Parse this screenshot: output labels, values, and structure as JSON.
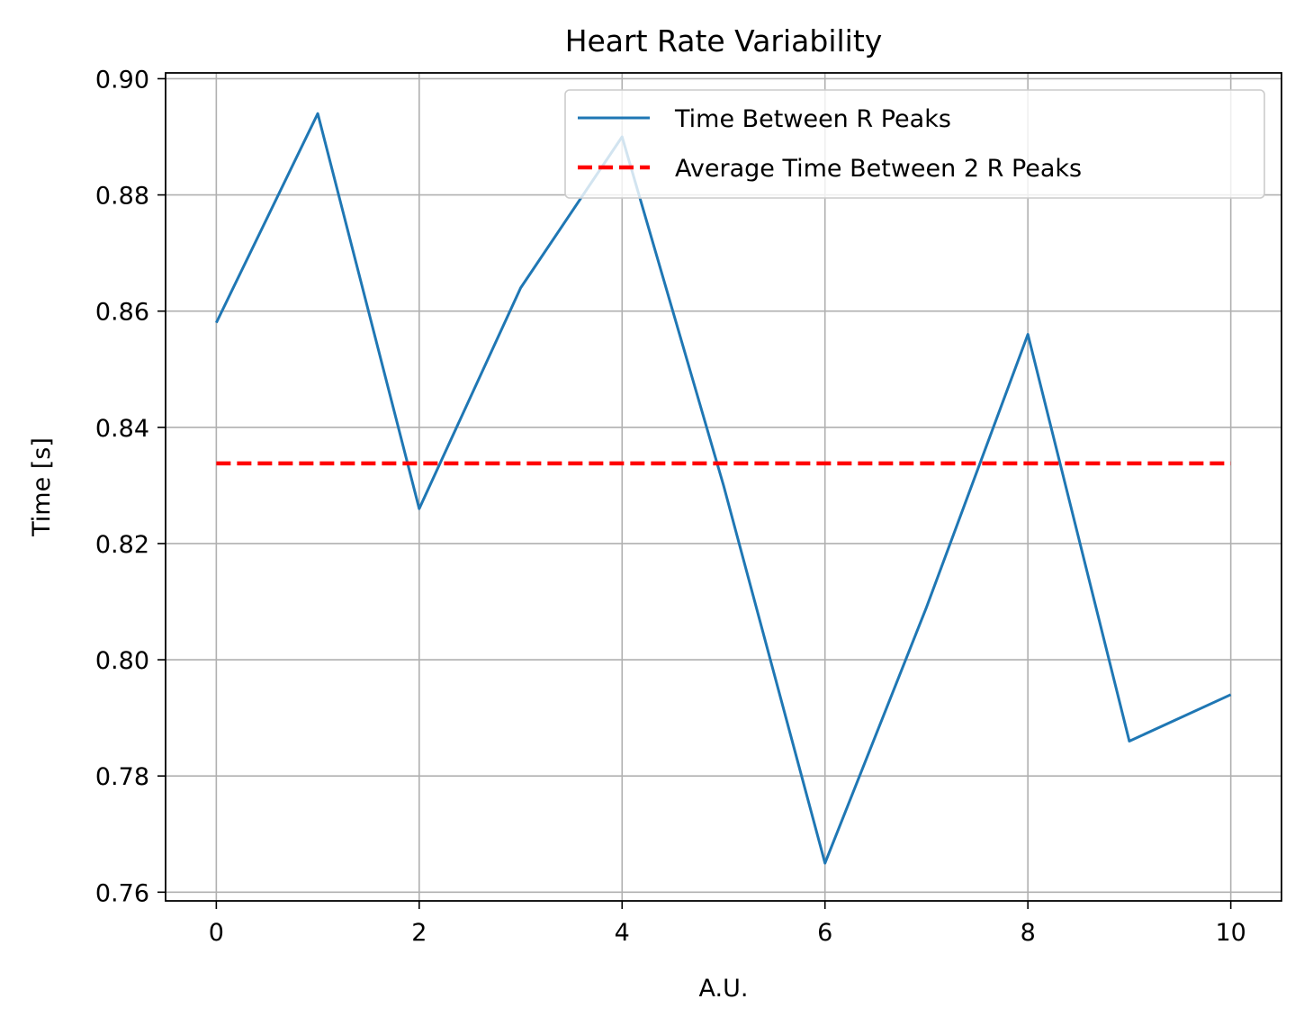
{
  "chart_data": {
    "type": "line",
    "title": "Heart Rate Variability",
    "xlabel": "A.U.",
    "ylabel": "Time [s]",
    "xlim": [
      -0.5,
      10.5
    ],
    "ylim": [
      0.7585,
      0.901
    ],
    "xticks": [
      0,
      2,
      4,
      6,
      8,
      10
    ],
    "yticks": [
      0.76,
      0.78,
      0.8,
      0.82,
      0.84,
      0.86,
      0.88,
      0.9
    ],
    "xtick_labels": [
      "0",
      "2",
      "4",
      "6",
      "8",
      "10"
    ],
    "ytick_labels": [
      "0.76",
      "0.78",
      "0.80",
      "0.82",
      "0.84",
      "0.86",
      "0.88",
      "0.90"
    ],
    "grid": true,
    "legend_position": "upper right",
    "series": [
      {
        "name": "Time Between R Peaks",
        "style": "solid",
        "color": "#1f77b4",
        "x": [
          0,
          1,
          2,
          3,
          4,
          5,
          6,
          7,
          8,
          9,
          10
        ],
        "values": [
          0.858,
          0.894,
          0.826,
          0.864,
          0.89,
          0.83,
          0.765,
          0.809,
          0.856,
          0.786,
          0.794
        ]
      },
      {
        "name": "Average Time Between 2 R Peaks",
        "style": "dashed",
        "color": "#ff0000",
        "x": [
          0,
          10
        ],
        "values": [
          0.8338,
          0.8338
        ]
      }
    ]
  }
}
